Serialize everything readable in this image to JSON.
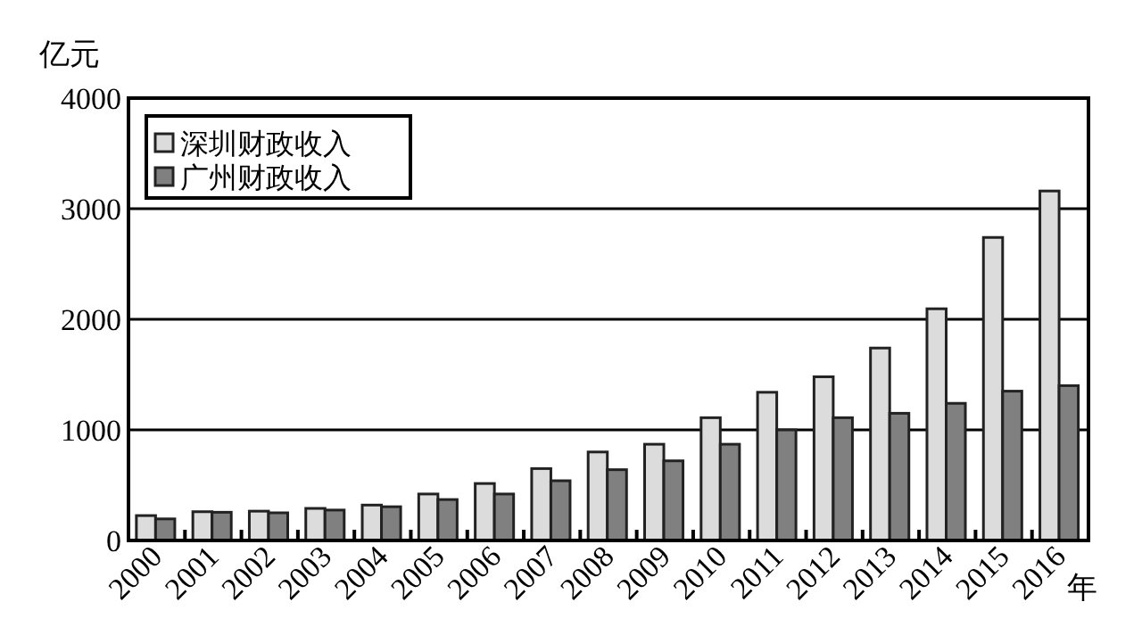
{
  "chart_data": {
    "type": "bar",
    "ylabel": "亿元",
    "xlabel": "年",
    "categories": [
      "2000",
      "2001",
      "2002",
      "2003",
      "2004",
      "2005",
      "2006",
      "2007",
      "2008",
      "2009",
      "2010",
      "2011",
      "2012",
      "2013",
      "2014",
      "2015",
      "2016"
    ],
    "series": [
      {
        "name": "深圳财政收入",
        "color": "#dcdcdc",
        "values": [
          225,
          260,
          265,
          290,
          320,
          420,
          515,
          650,
          800,
          870,
          1110,
          1340,
          1480,
          1740,
          2095,
          2740,
          3160
        ]
      },
      {
        "name": "广州财政收入",
        "color": "#808080",
        "values": [
          195,
          255,
          250,
          275,
          305,
          370,
          420,
          540,
          640,
          720,
          870,
          1000,
          1110,
          1150,
          1240,
          1350,
          1400
        ]
      }
    ],
    "ylim": [
      0,
      4000
    ],
    "yticks": [
      0,
      1000,
      2000,
      3000,
      4000
    ],
    "grid": "y",
    "legend": "top left"
  }
}
